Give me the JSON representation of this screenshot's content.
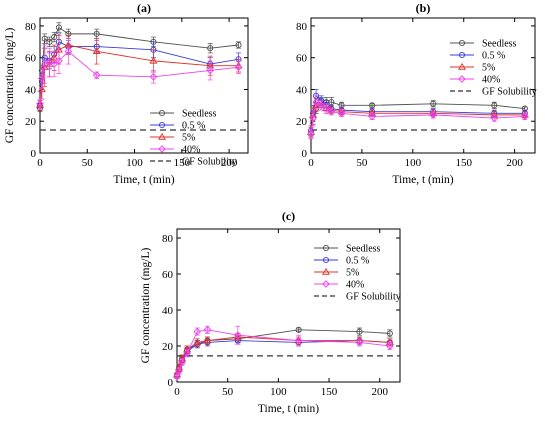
{
  "chart_data": [
    {
      "panel": "(a)",
      "type": "line",
      "xlabel": "Time, t (min)",
      "ylabel": "GF concentration (mg/L)",
      "xlim": [
        0,
        220
      ],
      "ylim": [
        0,
        85
      ],
      "xticks": [
        0,
        50,
        100,
        150,
        200
      ],
      "yticks": [
        0,
        20,
        40,
        60,
        80
      ],
      "legend_position": "right-lower",
      "reference_line": {
        "name": "GF Solubility",
        "y": 14.5,
        "style": "dashed",
        "color": "#333333"
      },
      "series": [
        {
          "name": "Seedless",
          "color": "#505050",
          "x": [
            0,
            2,
            5,
            10,
            15,
            20,
            30,
            60,
            120,
            180,
            210
          ],
          "y": [
            28,
            52,
            72,
            70,
            73,
            79,
            75,
            75,
            70,
            66,
            68
          ],
          "err": [
            2,
            3,
            3,
            3,
            3,
            3,
            3,
            3,
            3,
            3,
            2
          ]
        },
        {
          "name": "0.5 %",
          "color": "#3a3adc",
          "x": [
            0,
            2,
            5,
            10,
            15,
            20,
            30,
            60,
            120,
            180,
            210
          ],
          "y": [
            30,
            45,
            60,
            58,
            62,
            70,
            67,
            67,
            65,
            56,
            59
          ],
          "err": [
            3,
            5,
            6,
            5,
            5,
            5,
            4,
            4,
            5,
            4,
            4
          ]
        },
        {
          "name": "5%",
          "color": "#e0302a",
          "x": [
            0,
            2,
            5,
            10,
            15,
            20,
            30,
            60,
            120,
            180,
            210
          ],
          "y": [
            30,
            40,
            54,
            56,
            60,
            65,
            68,
            64,
            58,
            55,
            55
          ],
          "err": [
            3,
            6,
            12,
            8,
            8,
            9,
            6,
            8,
            7,
            6,
            4
          ]
        },
        {
          "name": "40%",
          "color": "#ee44ee",
          "x": [
            0,
            2,
            5,
            10,
            15,
            20,
            30,
            60,
            120,
            180,
            210
          ],
          "y": [
            31,
            47,
            56,
            57,
            56,
            58,
            64,
            49,
            48,
            52,
            54
          ],
          "err": [
            3,
            6,
            12,
            9,
            8,
            8,
            8,
            2,
            4,
            6,
            4
          ]
        }
      ]
    },
    {
      "panel": "(b)",
      "type": "line",
      "xlabel": "Time, t (min)",
      "ylabel": "",
      "xlim": [
        0,
        220
      ],
      "ylim": [
        0,
        85
      ],
      "xticks": [
        0,
        50,
        100,
        150,
        200
      ],
      "yticks": [
        0,
        20,
        40,
        60,
        80
      ],
      "legend_position": "top-right",
      "reference_line": {
        "name": "GF Solubility",
        "y": 14.5,
        "style": "dashed",
        "color": "#333333"
      },
      "series": [
        {
          "name": "Seedless",
          "color": "#505050",
          "x": [
            0,
            2,
            5,
            10,
            15,
            20,
            30,
            60,
            120,
            180,
            210
          ],
          "y": [
            12,
            22,
            28,
            32,
            32,
            32,
            30,
            30,
            31,
            30,
            28
          ],
          "err": [
            3,
            4,
            3,
            3,
            3,
            3,
            2,
            1,
            2,
            2,
            1
          ]
        },
        {
          "name": "0.5 %",
          "color": "#3a3adc",
          "x": [
            0,
            2,
            5,
            10,
            15,
            20,
            30,
            60,
            120,
            180,
            210
          ],
          "y": [
            14,
            25,
            36,
            33,
            30,
            28,
            27,
            26,
            26,
            25,
            25
          ],
          "err": [
            3,
            5,
            4,
            3,
            3,
            2,
            2,
            2,
            2,
            2,
            2
          ]
        },
        {
          "name": "5%",
          "color": "#e0302a",
          "x": [
            0,
            2,
            5,
            10,
            15,
            20,
            30,
            60,
            120,
            180,
            210
          ],
          "y": [
            13,
            24,
            30,
            30,
            28,
            27,
            26,
            25,
            25,
            24,
            24
          ],
          "err": [
            3,
            4,
            4,
            3,
            3,
            2,
            2,
            2,
            2,
            2,
            2
          ]
        },
        {
          "name": "40%",
          "color": "#ee44ee",
          "x": [
            0,
            2,
            5,
            10,
            15,
            20,
            30,
            60,
            120,
            180,
            210
          ],
          "y": [
            12,
            22,
            32,
            30,
            28,
            26,
            25,
            23,
            24,
            22,
            23
          ],
          "err": [
            3,
            5,
            4,
            3,
            3,
            2,
            2,
            2,
            2,
            2,
            2
          ]
        }
      ]
    },
    {
      "panel": "(c)",
      "type": "line",
      "xlabel": "Time, t (min)",
      "ylabel": "GF concentration (mg/L)",
      "xlim": [
        0,
        220
      ],
      "ylim": [
        0,
        85
      ],
      "xticks": [
        0,
        50,
        100,
        150,
        200
      ],
      "yticks": [
        0,
        20,
        40,
        60,
        80
      ],
      "legend_position": "top-right",
      "reference_line": {
        "name": "GF Solubility",
        "y": 14.5,
        "style": "dashed",
        "color": "#333333"
      },
      "series": [
        {
          "name": "Seedless",
          "color": "#505050",
          "x": [
            0,
            2,
            5,
            10,
            20,
            30,
            60,
            120,
            180,
            210
          ],
          "y": [
            4,
            8,
            13,
            18,
            21,
            23,
            24,
            29,
            28,
            27
          ],
          "err": [
            1,
            2,
            2,
            2,
            2,
            2,
            2,
            1,
            2,
            2
          ]
        },
        {
          "name": "0.5 %",
          "color": "#3a3adc",
          "x": [
            0,
            2,
            5,
            10,
            20,
            30,
            60,
            120,
            180,
            210
          ],
          "y": [
            3,
            7,
            12,
            17,
            21,
            22,
            23,
            22,
            23,
            22
          ],
          "err": [
            1,
            2,
            2,
            2,
            2,
            2,
            2,
            2,
            2,
            2
          ]
        },
        {
          "name": "5%",
          "color": "#e0302a",
          "x": [
            0,
            2,
            5,
            10,
            20,
            30,
            60,
            120,
            180,
            210
          ],
          "y": [
            4,
            8,
            13,
            18,
            22,
            23,
            25,
            23,
            23,
            22
          ],
          "err": [
            1,
            2,
            2,
            2,
            2,
            2,
            2,
            2,
            2,
            2
          ]
        },
        {
          "name": "40%",
          "color": "#ee44ee",
          "x": [
            0,
            2,
            5,
            10,
            20,
            30,
            60,
            120,
            180,
            210
          ],
          "y": [
            3,
            6,
            11,
            16,
            28,
            29,
            26,
            23,
            22,
            20
          ],
          "err": [
            1,
            2,
            2,
            2,
            2,
            2,
            5,
            3,
            2,
            2
          ]
        }
      ]
    }
  ]
}
